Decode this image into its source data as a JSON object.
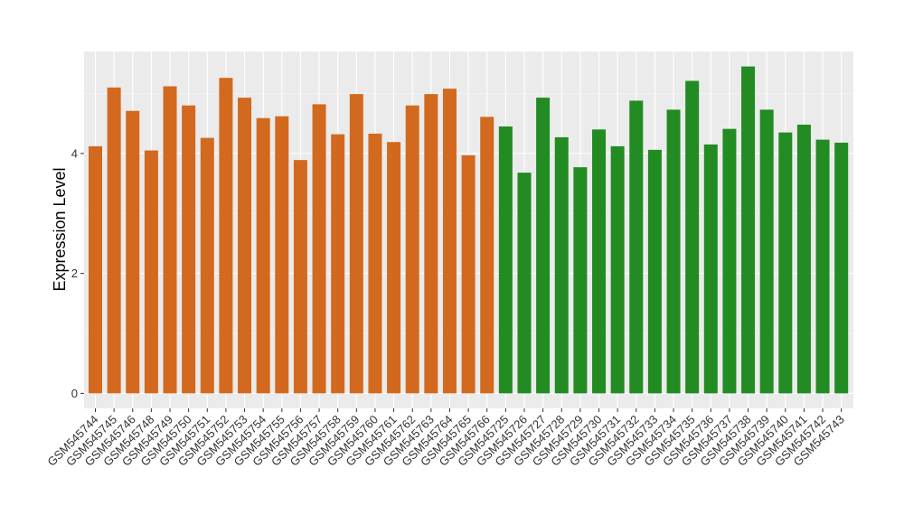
{
  "chart_data": {
    "type": "bar",
    "ylabel": "Expression Level",
    "xlabel": "",
    "ylim": [
      -0.25,
      5.7
    ],
    "yticks": [
      0,
      2,
      4
    ],
    "grid": true,
    "legend": "none",
    "group_colors": {
      "group1": "#D2691E",
      "group2": "#228B22"
    },
    "categories": [
      "GSM545744",
      "GSM545745",
      "GSM545746",
      "GSM545748",
      "GSM545749",
      "GSM545750",
      "GSM545751",
      "GSM545752",
      "GSM545753",
      "GSM545754",
      "GSM545755",
      "GSM545756",
      "GSM545757",
      "GSM545758",
      "GSM545759",
      "GSM545760",
      "GSM545761",
      "GSM545762",
      "GSM545763",
      "GSM545764",
      "GSM545765",
      "GSM545766",
      "GSM545725",
      "GSM545726",
      "GSM545727",
      "GSM545728",
      "GSM545729",
      "GSM545730",
      "GSM545731",
      "GSM545732",
      "GSM545733",
      "GSM545734",
      "GSM545735",
      "GSM545736",
      "GSM545737",
      "GSM545738",
      "GSM545739",
      "GSM545740",
      "GSM545741",
      "GSM545742",
      "GSM545743"
    ],
    "values": [
      4.12,
      5.1,
      4.71,
      4.05,
      5.12,
      4.8,
      4.26,
      5.26,
      4.93,
      4.59,
      4.62,
      3.89,
      4.82,
      4.32,
      4.99,
      4.33,
      4.19,
      4.8,
      4.99,
      5.08,
      3.97,
      4.61,
      4.45,
      3.68,
      4.93,
      4.27,
      3.77,
      4.4,
      4.12,
      4.88,
      4.06,
      4.73,
      5.21,
      4.15,
      4.41,
      5.45,
      4.73,
      4.35,
      4.48,
      4.23,
      4.18
    ],
    "groups": [
      "group1",
      "group1",
      "group1",
      "group1",
      "group1",
      "group1",
      "group1",
      "group1",
      "group1",
      "group1",
      "group1",
      "group1",
      "group1",
      "group1",
      "group1",
      "group1",
      "group1",
      "group1",
      "group1",
      "group1",
      "group1",
      "group1",
      "group2",
      "group2",
      "group2",
      "group2",
      "group2",
      "group2",
      "group2",
      "group2",
      "group2",
      "group2",
      "group2",
      "group2",
      "group2",
      "group2",
      "group2",
      "group2",
      "group2",
      "group2",
      "group2"
    ]
  }
}
